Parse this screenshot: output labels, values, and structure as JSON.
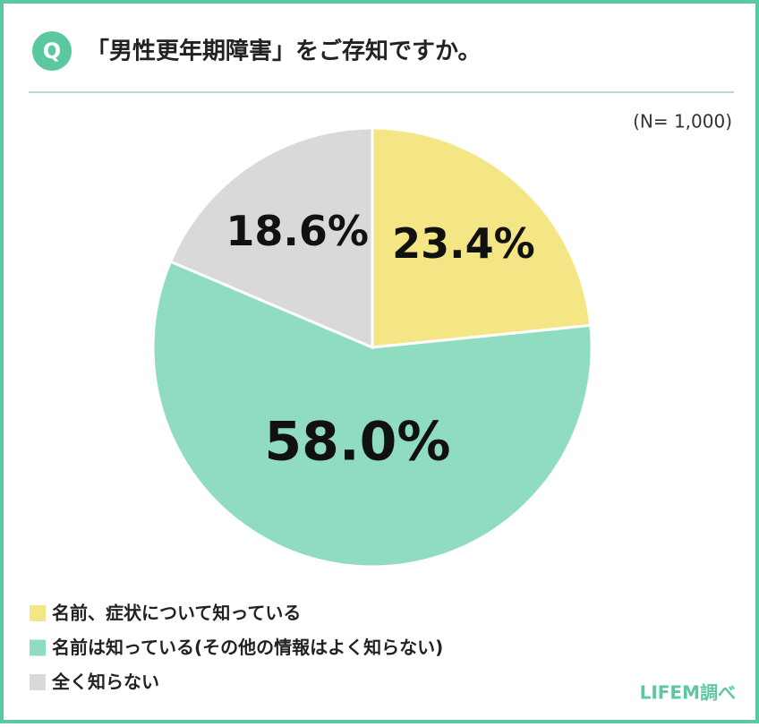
{
  "chart_data": {
    "type": "pie",
    "badge": "Q",
    "title": "「男性更年期障害」をご存知ですか。",
    "note": "(N= 1,000)",
    "categories": [
      "名前、症状について知っている",
      "名前は知っている(その他の情報はよく知らない)",
      "全く知らない"
    ],
    "values": [
      23.4,
      58.0,
      18.6
    ],
    "value_labels": [
      "23.4%",
      "58.0%",
      "18.6%"
    ],
    "colors": [
      "#f5e685",
      "#90dcc0",
      "#d9d9d9"
    ],
    "source": "LIFEM調べ"
  }
}
